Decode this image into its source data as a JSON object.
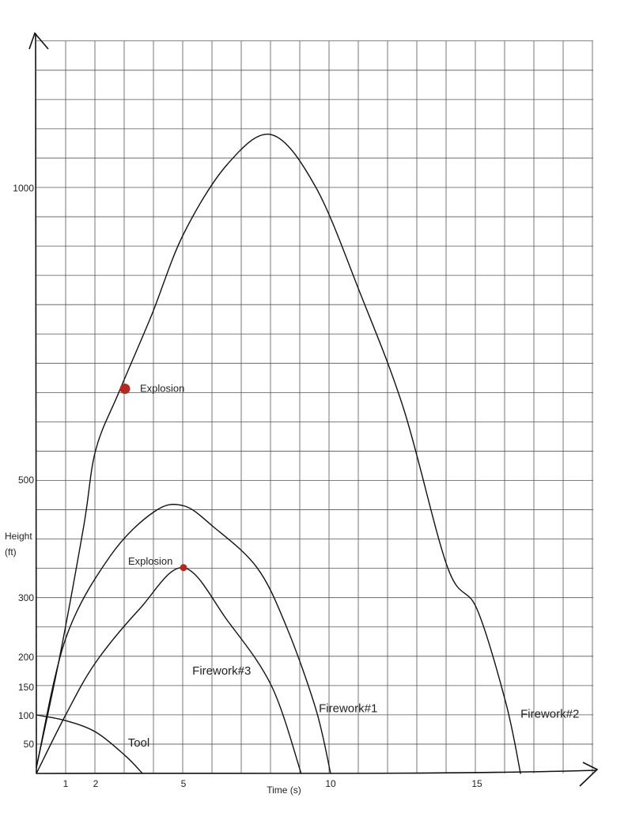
{
  "chart_data": {
    "type": "line",
    "title": "",
    "xlabel": "Time (s)",
    "ylabel": [
      "Height",
      "(ft)"
    ],
    "xlim": [
      0,
      19
    ],
    "ylim": [
      0,
      1250
    ],
    "x_ticks": [
      {
        "value": 1,
        "label": "1"
      },
      {
        "value": 2,
        "label": "2"
      },
      {
        "value": 5,
        "label": "5"
      },
      {
        "value": 10,
        "label": "10"
      },
      {
        "value": 15,
        "label": "15"
      }
    ],
    "y_ticks": [
      {
        "value": 50,
        "label": "50"
      },
      {
        "value": 100,
        "label": "100"
      },
      {
        "value": 150,
        "label": "150"
      },
      {
        "value": 200,
        "label": "200"
      },
      {
        "value": 300,
        "label": "300"
      },
      {
        "value": 500,
        "label": "500"
      },
      {
        "value": 1000,
        "label": "1000"
      }
    ],
    "grid": true,
    "series": [
      {
        "name": "Firework#2",
        "points": [
          [
            0,
            10
          ],
          [
            0.8,
            200
          ],
          [
            1.6,
            420
          ],
          [
            2.0,
            550
          ],
          [
            2.8,
            650
          ],
          [
            3.9,
            780
          ],
          [
            5.0,
            920
          ],
          [
            6.5,
            1040
          ],
          [
            8.0,
            1090
          ],
          [
            9.5,
            1000
          ],
          [
            11.0,
            820
          ],
          [
            12.5,
            620
          ],
          [
            14.0,
            350
          ],
          [
            15.0,
            280
          ],
          [
            16.0,
            120
          ],
          [
            16.5,
            0
          ]
        ]
      },
      {
        "name": "Firework#1",
        "points": [
          [
            0,
            10
          ],
          [
            1.0,
            230
          ],
          [
            2.5,
            370
          ],
          [
            4.0,
            445
          ],
          [
            5.0,
            455
          ],
          [
            6.0,
            420
          ],
          [
            7.5,
            350
          ],
          [
            8.5,
            250
          ],
          [
            9.5,
            110
          ],
          [
            10.0,
            0
          ]
        ]
      },
      {
        "name": "Firework#3",
        "points": [
          [
            0,
            0
          ],
          [
            1.0,
            100
          ],
          [
            2.0,
            190
          ],
          [
            3.5,
            280
          ],
          [
            5.0,
            350
          ],
          [
            6.5,
            260
          ],
          [
            8.0,
            150
          ],
          [
            9.0,
            0
          ]
        ]
      },
      {
        "name": "Tool",
        "points": [
          [
            0,
            100
          ],
          [
            1.0,
            90
          ],
          [
            2.0,
            70
          ],
          [
            3.0,
            30
          ],
          [
            3.6,
            0
          ]
        ]
      }
    ],
    "series_labels": [
      {
        "series": "Firework#2",
        "text": "Firework#2",
        "x": 16.5,
        "y": 95
      },
      {
        "series": "Firework#1",
        "text": "Firework#1",
        "x": 9.6,
        "y": 105
      },
      {
        "series": "Firework#3",
        "text": "Firework#3",
        "x": 5.3,
        "y": 170
      },
      {
        "series": "Tool",
        "text": "Tool",
        "x": 3.1,
        "y": 45
      }
    ],
    "annotations": [
      {
        "text": "Explosion",
        "x": 3.0,
        "y": 655,
        "marker": true,
        "label_dx": 3.4
      },
      {
        "text": "Explosion",
        "x": 5.0,
        "y": 350,
        "marker": true,
        "label_dx": -1.9
      }
    ],
    "marker_color": "#b22a1f",
    "line_color": "#111111"
  }
}
